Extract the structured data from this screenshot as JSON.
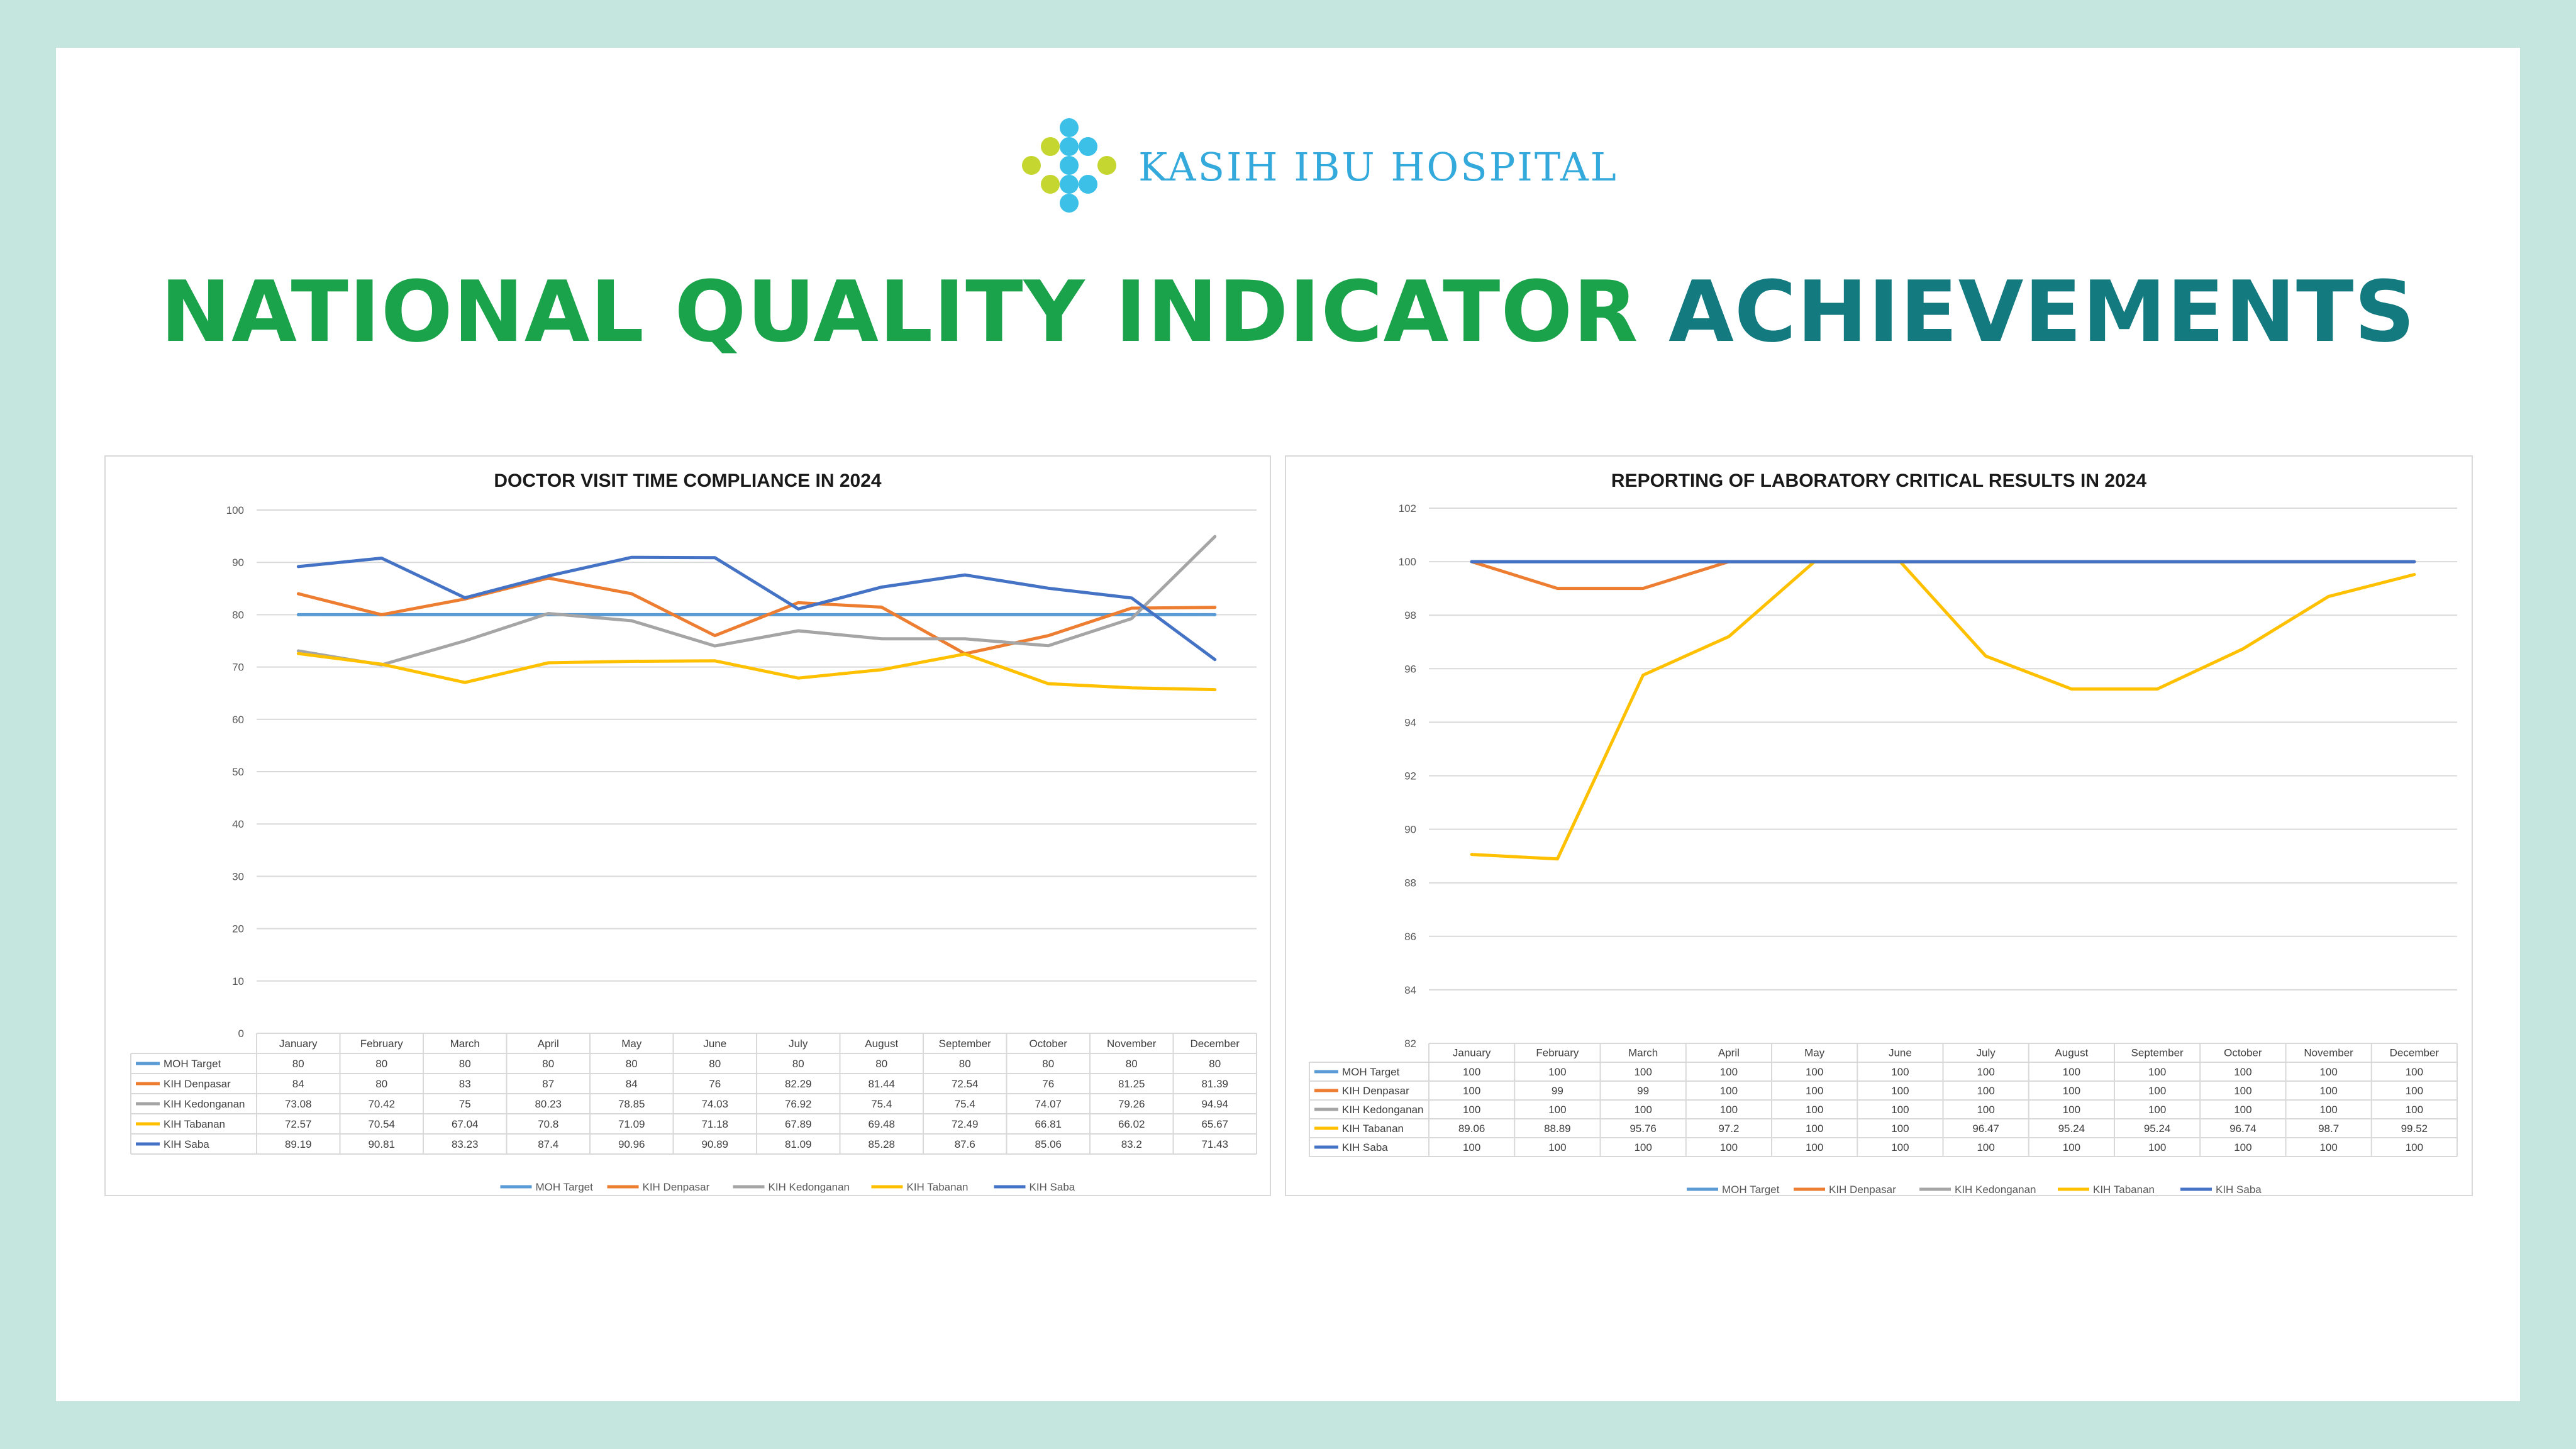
{
  "logo": {
    "text": "KASIH IBU HOSPITAL",
    "icon": "hospital-dots-icon",
    "colors": [
      "#3cc0e8",
      "#c4d62f"
    ]
  },
  "headline": {
    "part1": "NATIONAL QUALITY INDICATOR",
    "part2": "ACHIEVEMENTS",
    "color1": "#1aa34a",
    "color2": "#137a7f"
  },
  "chart_data": [
    {
      "type": "line",
      "title": "DOCTOR VISIT TIME COMPLIANCE IN 2024",
      "xlabel": "",
      "ylabel": "",
      "ylim": [
        0,
        100
      ],
      "yticks": [
        0,
        10,
        20,
        30,
        40,
        50,
        60,
        70,
        80,
        90,
        100
      ],
      "grid": true,
      "legend": "bottom",
      "data_table": true,
      "categories": [
        "January",
        "February",
        "March",
        "April",
        "May",
        "June",
        "July",
        "August",
        "September",
        "October",
        "November",
        "December"
      ],
      "series": [
        {
          "name": "MOH Target",
          "color": "#5b9bd5",
          "values": [
            80,
            80,
            80,
            80,
            80,
            80,
            80,
            80,
            80,
            80,
            80,
            80
          ]
        },
        {
          "name": "KIH Denpasar",
          "color": "#ed7d31",
          "values": [
            84,
            80,
            83,
            87,
            84,
            76,
            82.29,
            81.44,
            72.54,
            76,
            81.25,
            81.39
          ]
        },
        {
          "name": "KIH Kedonganan",
          "color": "#a5a5a5",
          "values": [
            73.08,
            70.42,
            75,
            80.23,
            78.85,
            74.03,
            76.92,
            75.4,
            75.4,
            74.07,
            79.26,
            94.94
          ]
        },
        {
          "name": "KIH Tabanan",
          "color": "#ffc000",
          "values": [
            72.57,
            70.54,
            67.04,
            70.8,
            71.09,
            71.18,
            67.89,
            69.48,
            72.49,
            66.81,
            66.02,
            65.67
          ]
        },
        {
          "name": "KIH Saba",
          "color": "#4472c4",
          "values": [
            89.19,
            90.81,
            83.23,
            87.4,
            90.96,
            90.89,
            81.09,
            85.28,
            87.6,
            85.06,
            83.2,
            71.43
          ]
        }
      ]
    },
    {
      "type": "line",
      "title": "REPORTING OF LABORATORY CRITICAL RESULTS IN 2024",
      "xlabel": "",
      "ylabel": "",
      "ylim": [
        82,
        102
      ],
      "yticks": [
        82,
        84,
        86,
        88,
        90,
        92,
        94,
        96,
        98,
        100,
        102
      ],
      "grid": true,
      "legend": "bottom",
      "data_table": true,
      "categories": [
        "January",
        "February",
        "March",
        "April",
        "May",
        "June",
        "July",
        "August",
        "September",
        "October",
        "November",
        "December"
      ],
      "series": [
        {
          "name": "MOH Target",
          "color": "#5b9bd5",
          "values": [
            100,
            100,
            100,
            100,
            100,
            100,
            100,
            100,
            100,
            100,
            100,
            100
          ]
        },
        {
          "name": "KIH Denpasar",
          "color": "#ed7d31",
          "values": [
            100,
            99,
            99,
            100,
            100,
            100,
            100,
            100,
            100,
            100,
            100,
            100
          ]
        },
        {
          "name": "KIH Kedonganan",
          "color": "#a5a5a5",
          "values": [
            100,
            100,
            100,
            100,
            100,
            100,
            100,
            100,
            100,
            100,
            100,
            100
          ]
        },
        {
          "name": "KIH Tabanan",
          "color": "#ffc000",
          "values": [
            89.06,
            88.89,
            95.76,
            97.2,
            100,
            100,
            96.47,
            95.24,
            95.24,
            96.74,
            98.7,
            99.52
          ]
        },
        {
          "name": "KIH Saba",
          "color": "#4472c4",
          "values": [
            100,
            100,
            100,
            100,
            100,
            100,
            100,
            100,
            100,
            100,
            100,
            100
          ]
        }
      ]
    }
  ]
}
